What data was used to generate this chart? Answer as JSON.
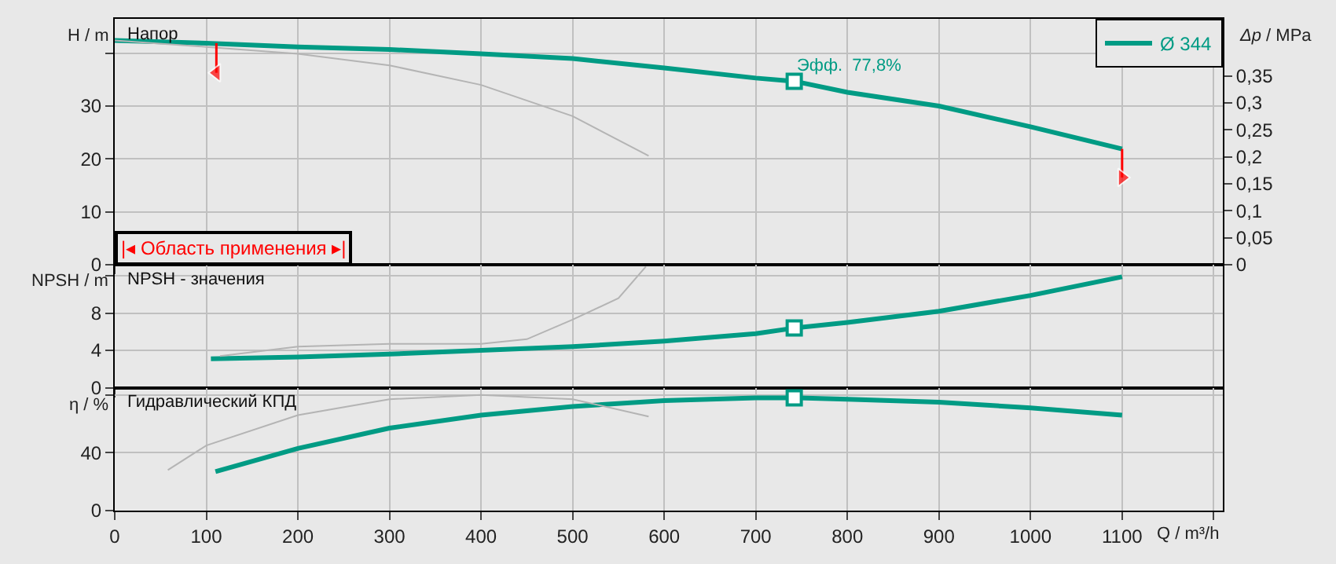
{
  "chart_data": [
    {
      "type": "line",
      "title": "Напор",
      "ylabel": "H / m",
      "y2label": "Δp / MPa",
      "xlim": [
        0,
        1210
      ],
      "ylim": [
        0,
        46.5
      ],
      "y2lim": [
        0,
        0.456
      ],
      "xticks": [
        0,
        100,
        200,
        300,
        400,
        500,
        600,
        700,
        800,
        900,
        1000,
        1100,
        1200
      ],
      "yticks": [
        0,
        10,
        20,
        30,
        {
          "value": 40,
          "label": null
        }
      ],
      "y2ticks": [
        0,
        {
          "value": 0.05,
          "label": "0,05"
        },
        {
          "value": 0.1,
          "label": "0,1"
        },
        {
          "value": 0.15,
          "label": "0,15"
        },
        {
          "value": 0.2,
          "label": "0,2"
        },
        {
          "value": 0.25,
          "label": "0,25"
        },
        {
          "value": 0.3,
          "label": "0,3"
        },
        {
          "value": 0.35,
          "label": "0,35"
        }
      ],
      "tick_labels": "y",
      "grid": true,
      "legend": "top right",
      "annotations": [
        {
          "text": "Эфф.  77,8%",
          "x": 742,
          "y": 34.7
        },
        "|◂ Область применения ▸|"
      ],
      "series": [
        {
          "name": "Ø 344",
          "color": "#009b84",
          "x": [
            0,
            100,
            200,
            300,
            400,
            500,
            600,
            700,
            742,
            800,
            900,
            1000,
            1100
          ],
          "values": [
            42.4,
            41.9,
            41.2,
            40.7,
            39.9,
            39.0,
            37.2,
            35.3,
            34.7,
            32.6,
            30.0,
            26.1,
            21.9
          ]
        },
        {
          "color": "#b4b4b4",
          "x": [
            0,
            100,
            200,
            300,
            400,
            500,
            583
          ],
          "values": [
            42.4,
            41.2,
            39.9,
            37.7,
            34.0,
            28.1,
            20.6
          ]
        },
        {
          "type": "scatter",
          "marker": "square",
          "color": "#009b84",
          "x": [
            742
          ],
          "values": [
            34.7
          ]
        },
        {
          "color": "#ff0000",
          "marker": "triangle",
          "x": [
            111,
            111
          ],
          "values": [
            41.9,
            36.3
          ]
        },
        {
          "color": "#ff0000",
          "marker": "triangle",
          "x": [
            1100,
            1100
          ],
          "values": [
            21.9,
            16.5
          ]
        }
      ]
    },
    {
      "type": "line",
      "title": "NPSH - значения",
      "ylabel": "NPSH / m",
      "xlim": [
        0,
        1210
      ],
      "ylim": [
        0,
        13.2
      ],
      "xticks": [
        0,
        100,
        200,
        300,
        400,
        500,
        600,
        700,
        800,
        900,
        1000,
        1100,
        1200
      ],
      "yticks": [
        0,
        4,
        8,
        {
          "value": 12,
          "label": null
        }
      ],
      "tick_labels": "y",
      "grid": true,
      "series": [
        {
          "color": "#009b84",
          "x": [
            105,
            200,
            300,
            400,
            500,
            600,
            700,
            742,
            800,
            900,
            1000,
            1100
          ],
          "values": [
            3.1,
            3.3,
            3.6,
            4.0,
            4.4,
            5.0,
            5.8,
            6.4,
            7.0,
            8.2,
            9.9,
            11.9
          ]
        },
        {
          "color": "#b4b4b4",
          "x": [
            115,
            200,
            300,
            400,
            450,
            500,
            550,
            580
          ],
          "values": [
            3.4,
            4.4,
            4.7,
            4.7,
            5.2,
            7.3,
            9.6,
            13.0
          ]
        },
        {
          "type": "scatter",
          "marker": "square",
          "color": "#009b84",
          "x": [
            742
          ],
          "values": [
            6.4
          ]
        }
      ]
    },
    {
      "type": "line",
      "title": "Гидравлический КПД",
      "ylabel": "η / %",
      "xlabel": "Q / m³/h",
      "xlim": [
        0,
        1210
      ],
      "ylim": [
        0,
        85
      ],
      "xticks": [
        0,
        100,
        200,
        300,
        400,
        500,
        600,
        700,
        800,
        900,
        1000,
        1100,
        {
          "value": 1200,
          "label": null
        }
      ],
      "yticks": [
        0,
        40,
        {
          "value": 80,
          "label": null
        }
      ],
      "grid": true,
      "series": [
        {
          "color": "#009b84",
          "x": [
            110,
            200,
            300,
            400,
            500,
            600,
            700,
            742,
            800,
            900,
            1000,
            1100
          ],
          "values": [
            27,
            43,
            57,
            66,
            72,
            76,
            78,
            78,
            77,
            75,
            71,
            66
          ]
        },
        {
          "color": "#b4b4b4",
          "x": [
            58,
            100,
            200,
            300,
            400,
            500,
            583
          ],
          "values": [
            28,
            45,
            66,
            77,
            80,
            77,
            65
          ]
        },
        {
          "type": "scatter",
          "marker": "square",
          "color": "#009b84",
          "x": [
            742
          ],
          "values": [
            78
          ]
        }
      ]
    }
  ]
}
